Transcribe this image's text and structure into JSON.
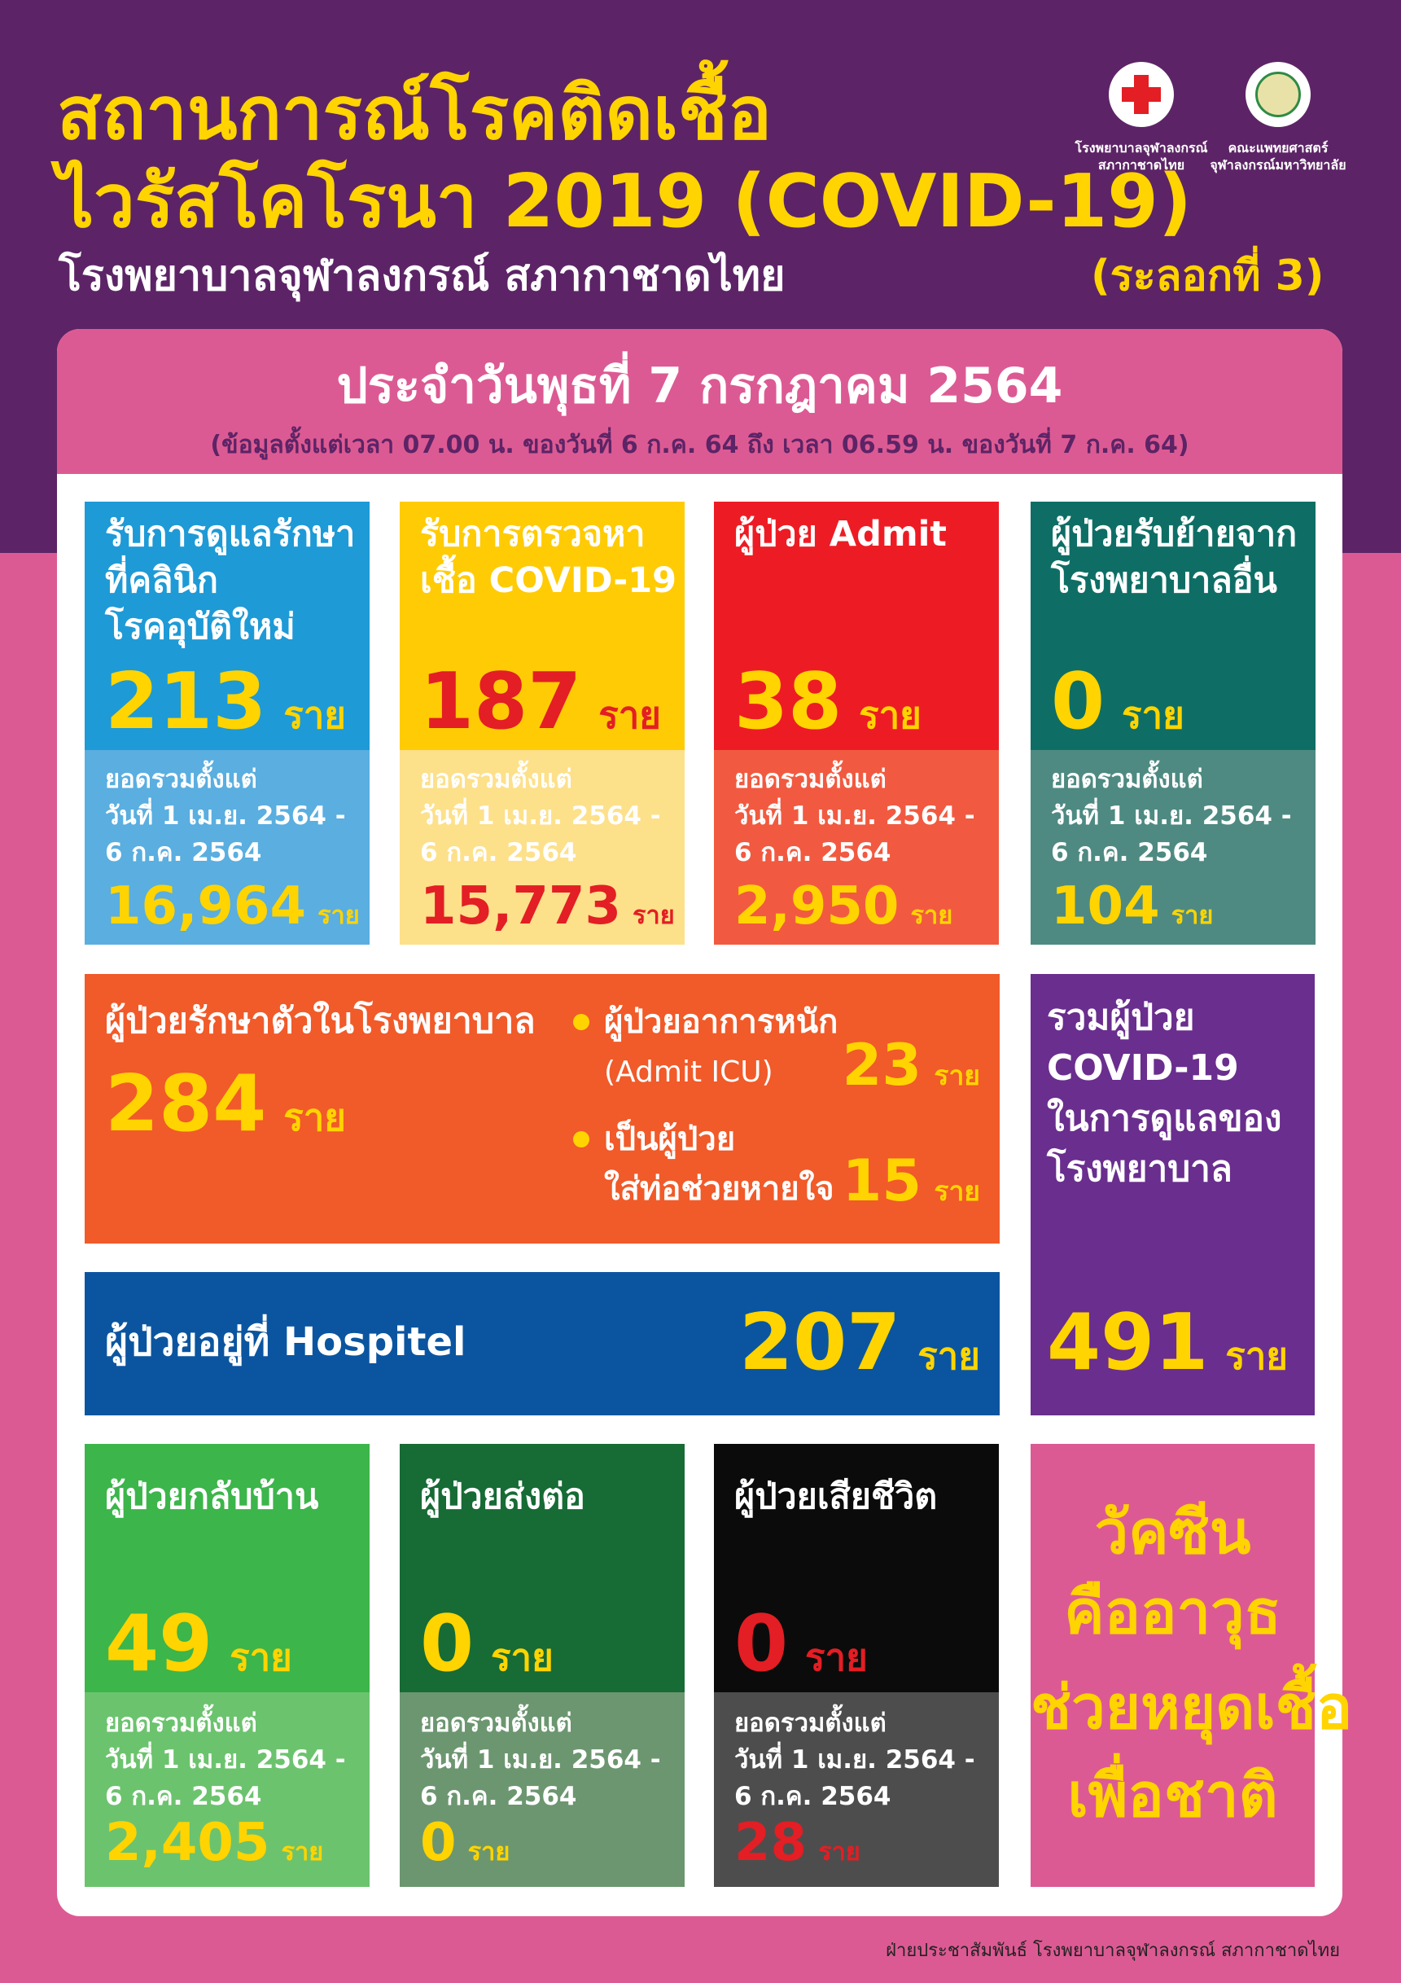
{
  "header": {
    "title": [
      "สถานการณ์โรคติดเชื้อ",
      "ไวรัสโคโรนา 2019 (COVID-19)"
    ],
    "subtitle": "โรงพยาบาลจุฬาลงกรณ์ สภากาชาดไทย",
    "wave": "(ระลอกที่ 3)",
    "logos": [
      [
        "โรงพยาบาลจุฬาลงกรณ์",
        "สภากาชาดไทย"
      ],
      [
        "คณะแพทยศาสตร์",
        "จุฬาลงกรณ์มหาวิทยาลัย"
      ]
    ]
  },
  "banner": {
    "date": "ประจำวันพุธที่ 7 กรกฎาคม 2564",
    "note": "(ข้อมูลตั้งแต่เวลา 07.00 น. ของวันที่ 6 ก.ค. 64 ถึง เวลา 06.59 น. ของวันที่ 7 ก.ค. 64)"
  },
  "unit": "ราย",
  "cumulative_label": [
    "ยอดรวมตั้งแต่",
    "วันที่ 1 เม.ย. 2564 -",
    "6 ก.ค. 2564"
  ],
  "summary_cards": [
    {
      "title": [
        "รับการดูแลรักษา",
        "ที่คลินิก",
        "โรคอุบัติใหม่"
      ],
      "today": "213",
      "total": "16,964"
    },
    {
      "title": [
        "รับการตรวจหา",
        "เชื้อ COVID-19"
      ],
      "today": "187",
      "total": "15,773"
    },
    {
      "title": [
        "ผู้ป่วย Admit"
      ],
      "today": "38",
      "total": "2,950"
    },
    {
      "title": [
        "ผู้ป่วยรับย้ายจาก",
        "โรงพยาบาลอื่น"
      ],
      "today": "0",
      "total": "104"
    }
  ],
  "inpatient": {
    "title": "ผู้ป่วยรักษาตัวในโรงพยาบาล",
    "value": "284",
    "items": [
      {
        "label": [
          "ผู้ป่วยอาการหนัก",
          "(Admit ICU)"
        ],
        "value": "23"
      },
      {
        "label": [
          "เป็นผู้ป่วย",
          "ใส่ท่อช่วยหายใจ"
        ],
        "value": "15"
      }
    ]
  },
  "hospitel": {
    "label": "ผู้ป่วยอยู่ที่ Hospitel",
    "value": "207"
  },
  "total_care": {
    "title": [
      "รวมผู้ป่วย",
      "COVID-19",
      "ในการดูแลของ",
      "โรงพยาบาล"
    ],
    "value": "491"
  },
  "outcome_cards": [
    {
      "title": [
        "ผู้ป่วยกลับบ้าน"
      ],
      "today": "49",
      "total": "2,405"
    },
    {
      "title": [
        "ผู้ป่วยส่งต่อ"
      ],
      "today": "0",
      "total": "0"
    },
    {
      "title": [
        "ผู้ป่วยเสียชีวิต"
      ],
      "today": "0",
      "total": "28"
    }
  ],
  "campaign": [
    "วัคซีน",
    "คืออาวุธ",
    "ช่วยหยุดเชื้อ",
    "เพื่อชาติ"
  ],
  "footer": "ฝ่ายประชาสัมพันธ์ โรงพยาบาลจุฬาลงกรณ์ สภากาชาดไทย"
}
